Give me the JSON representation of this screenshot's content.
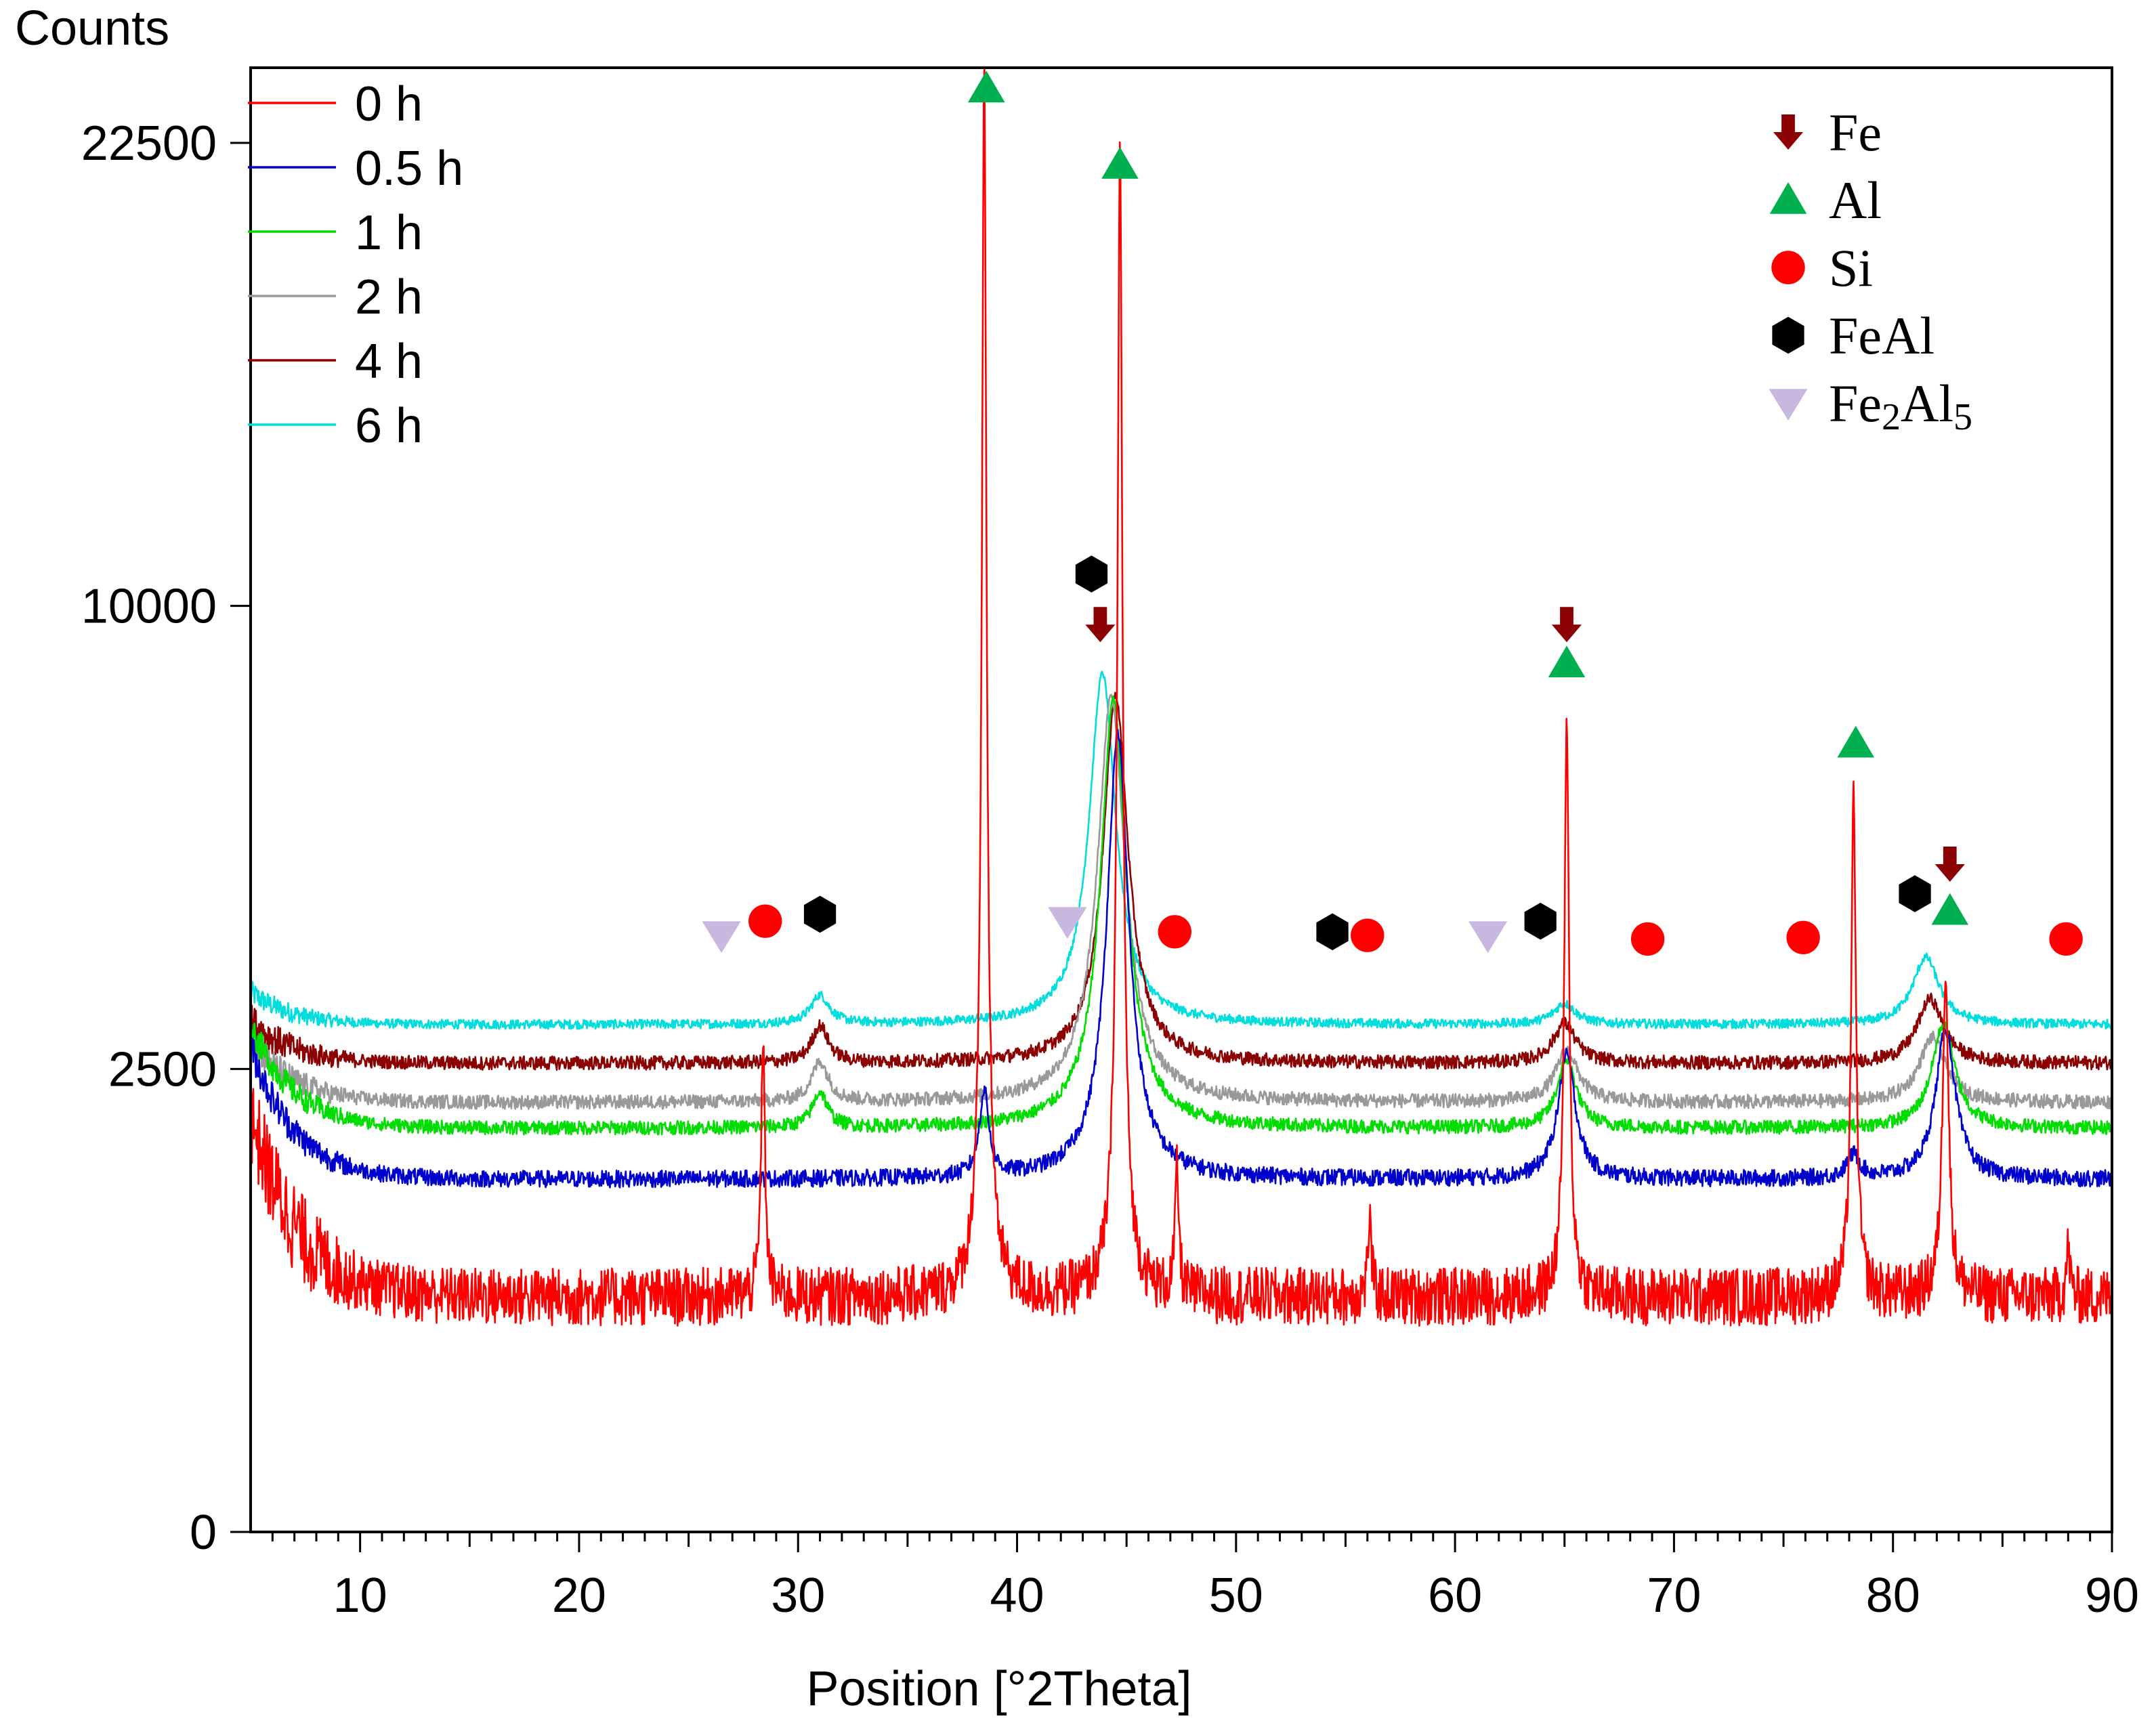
{
  "chart_data": {
    "type": "line",
    "ylabel": "Counts",
    "xlabel": "Position [°2Theta]",
    "xlim": [
      5,
      90
    ],
    "ylim": [
      0,
      25000
    ],
    "y_scale": "sqrt",
    "x_ticks": [
      10,
      20,
      30,
      40,
      50,
      60,
      70,
      80,
      90
    ],
    "y_ticks": [
      0,
      2500,
      10000,
      22500
    ],
    "y_tick_labels": [
      "0",
      "2500",
      "10000",
      "22500"
    ],
    "legend_position": "top-left",
    "series": [
      {
        "name": "0 h",
        "color": "#ff0000",
        "baseline": 650,
        "low_angle": 1400,
        "noise": 160,
        "peaks": [
          [
            28.4,
            2200,
            0.09
          ],
          [
            38.5,
            24800,
            0.09
          ],
          [
            44.7,
            22000,
            0.1
          ],
          [
            47.3,
            900,
            0.09
          ],
          [
            56.1,
            500,
            0.09
          ],
          [
            65.1,
            7000,
            0.1
          ],
          [
            78.2,
            5800,
            0.1
          ],
          [
            82.4,
            3000,
            0.14
          ],
          [
            88.0,
            300,
            0.09
          ]
        ]
      },
      {
        "name": "0.5 h",
        "color": "#0000cc",
        "baseline": 1450,
        "low_angle": 1300,
        "noise": 70,
        "peaks": [
          [
            38.5,
            800,
            0.25
          ],
          [
            44.6,
            6000,
            0.5
          ],
          [
            65.1,
            1200,
            0.45
          ],
          [
            78.2,
            200,
            0.35
          ],
          [
            82.4,
            1500,
            0.5
          ]
        ]
      },
      {
        "name": "1 h",
        "color": "#00dd00",
        "baseline": 1900,
        "low_angle": 1100,
        "noise": 65,
        "peaks": [
          [
            31.0,
            350,
            0.4
          ],
          [
            44.4,
            6200,
            0.6
          ],
          [
            65.1,
            700,
            0.5
          ],
          [
            82.3,
            1100,
            0.6
          ]
        ]
      },
      {
        "name": "2 h",
        "color": "#999999",
        "baseline": 2150,
        "low_angle": 700,
        "noise": 70,
        "peaks": [
          [
            31.0,
            420,
            0.45
          ],
          [
            44.3,
            6000,
            0.65
          ],
          [
            65.1,
            550,
            0.6
          ],
          [
            81.8,
            700,
            0.7
          ]
        ]
      },
      {
        "name": "4 h",
        "color": "#8b0000",
        "baseline": 2560,
        "low_angle": 500,
        "noise": 75,
        "peaks": [
          [
            31.0,
            420,
            0.45
          ],
          [
            44.5,
            5600,
            0.6
          ],
          [
            65.0,
            450,
            0.6
          ],
          [
            81.7,
            750,
            0.7
          ]
        ]
      },
      {
        "name": "6 h",
        "color": "#00dddd",
        "baseline": 3000,
        "low_angle": 400,
        "noise": 55,
        "peaks": [
          [
            31.0,
            350,
            0.5
          ],
          [
            43.9,
            5600,
            0.65
          ],
          [
            65.0,
            250,
            0.6
          ],
          [
            81.5,
            850,
            0.7
          ]
        ]
      }
    ],
    "phase_legend": [
      {
        "label": "Fe",
        "marker": "arrow-down",
        "color": "#8b0000"
      },
      {
        "label": "Al",
        "marker": "triangle-up",
        "color": "#00b050"
      },
      {
        "label": "Si",
        "marker": "circle",
        "color": "#ff0000"
      },
      {
        "label": "FeAl",
        "marker": "hexagon",
        "color": "#000000"
      },
      {
        "label": "Fe2Al5",
        "label_main": "Fe",
        "sub1": "2",
        "mid": "Al",
        "sub2": "5",
        "marker": "triangle-down",
        "color": "#c8b8e0"
      }
    ],
    "peak_markers": [
      {
        "x": 38.6,
        "y": 24300,
        "marker": "triangle-up",
        "phase": "Al"
      },
      {
        "x": 44.7,
        "y": 21800,
        "marker": "triangle-up",
        "phase": "Al"
      },
      {
        "x": 43.4,
        "y": 10700,
        "marker": "hexagon",
        "phase": "FeAl"
      },
      {
        "x": 43.8,
        "y": 9600,
        "marker": "arrow-down",
        "phase": "Fe"
      },
      {
        "x": 65.1,
        "y": 9600,
        "marker": "arrow-down",
        "phase": "Fe"
      },
      {
        "x": 65.1,
        "y": 8800,
        "marker": "triangle-up",
        "phase": "Al"
      },
      {
        "x": 78.3,
        "y": 7250,
        "marker": "triangle-up",
        "phase": "Al"
      },
      {
        "x": 82.6,
        "y": 5200,
        "marker": "arrow-down",
        "phase": "Fe"
      },
      {
        "x": 82.6,
        "y": 4500,
        "marker": "triangle-up",
        "phase": "Al"
      },
      {
        "x": 81.0,
        "y": 4750,
        "marker": "hexagon",
        "phase": "FeAl"
      },
      {
        "x": 26.5,
        "y": 4150,
        "marker": "triangle-down",
        "phase": "Fe2Al5"
      },
      {
        "x": 28.5,
        "y": 4350,
        "marker": "circle",
        "phase": "Si"
      },
      {
        "x": 31.0,
        "y": 4450,
        "marker": "hexagon",
        "phase": "FeAl"
      },
      {
        "x": 42.3,
        "y": 4350,
        "marker": "triangle-down",
        "phase": "Fe2Al5"
      },
      {
        "x": 47.2,
        "y": 4200,
        "marker": "circle",
        "phase": "Si"
      },
      {
        "x": 54.4,
        "y": 4200,
        "marker": "hexagon",
        "phase": "FeAl"
      },
      {
        "x": 56.0,
        "y": 4150,
        "marker": "circle",
        "phase": "Si"
      },
      {
        "x": 61.5,
        "y": 4150,
        "marker": "triangle-down",
        "phase": "Fe2Al5"
      },
      {
        "x": 63.9,
        "y": 4350,
        "marker": "hexagon",
        "phase": "FeAl"
      },
      {
        "x": 68.8,
        "y": 4100,
        "marker": "circle",
        "phase": "Si"
      },
      {
        "x": 75.9,
        "y": 4120,
        "marker": "circle",
        "phase": "Si"
      },
      {
        "x": 87.9,
        "y": 4100,
        "marker": "circle",
        "phase": "Si"
      }
    ]
  }
}
